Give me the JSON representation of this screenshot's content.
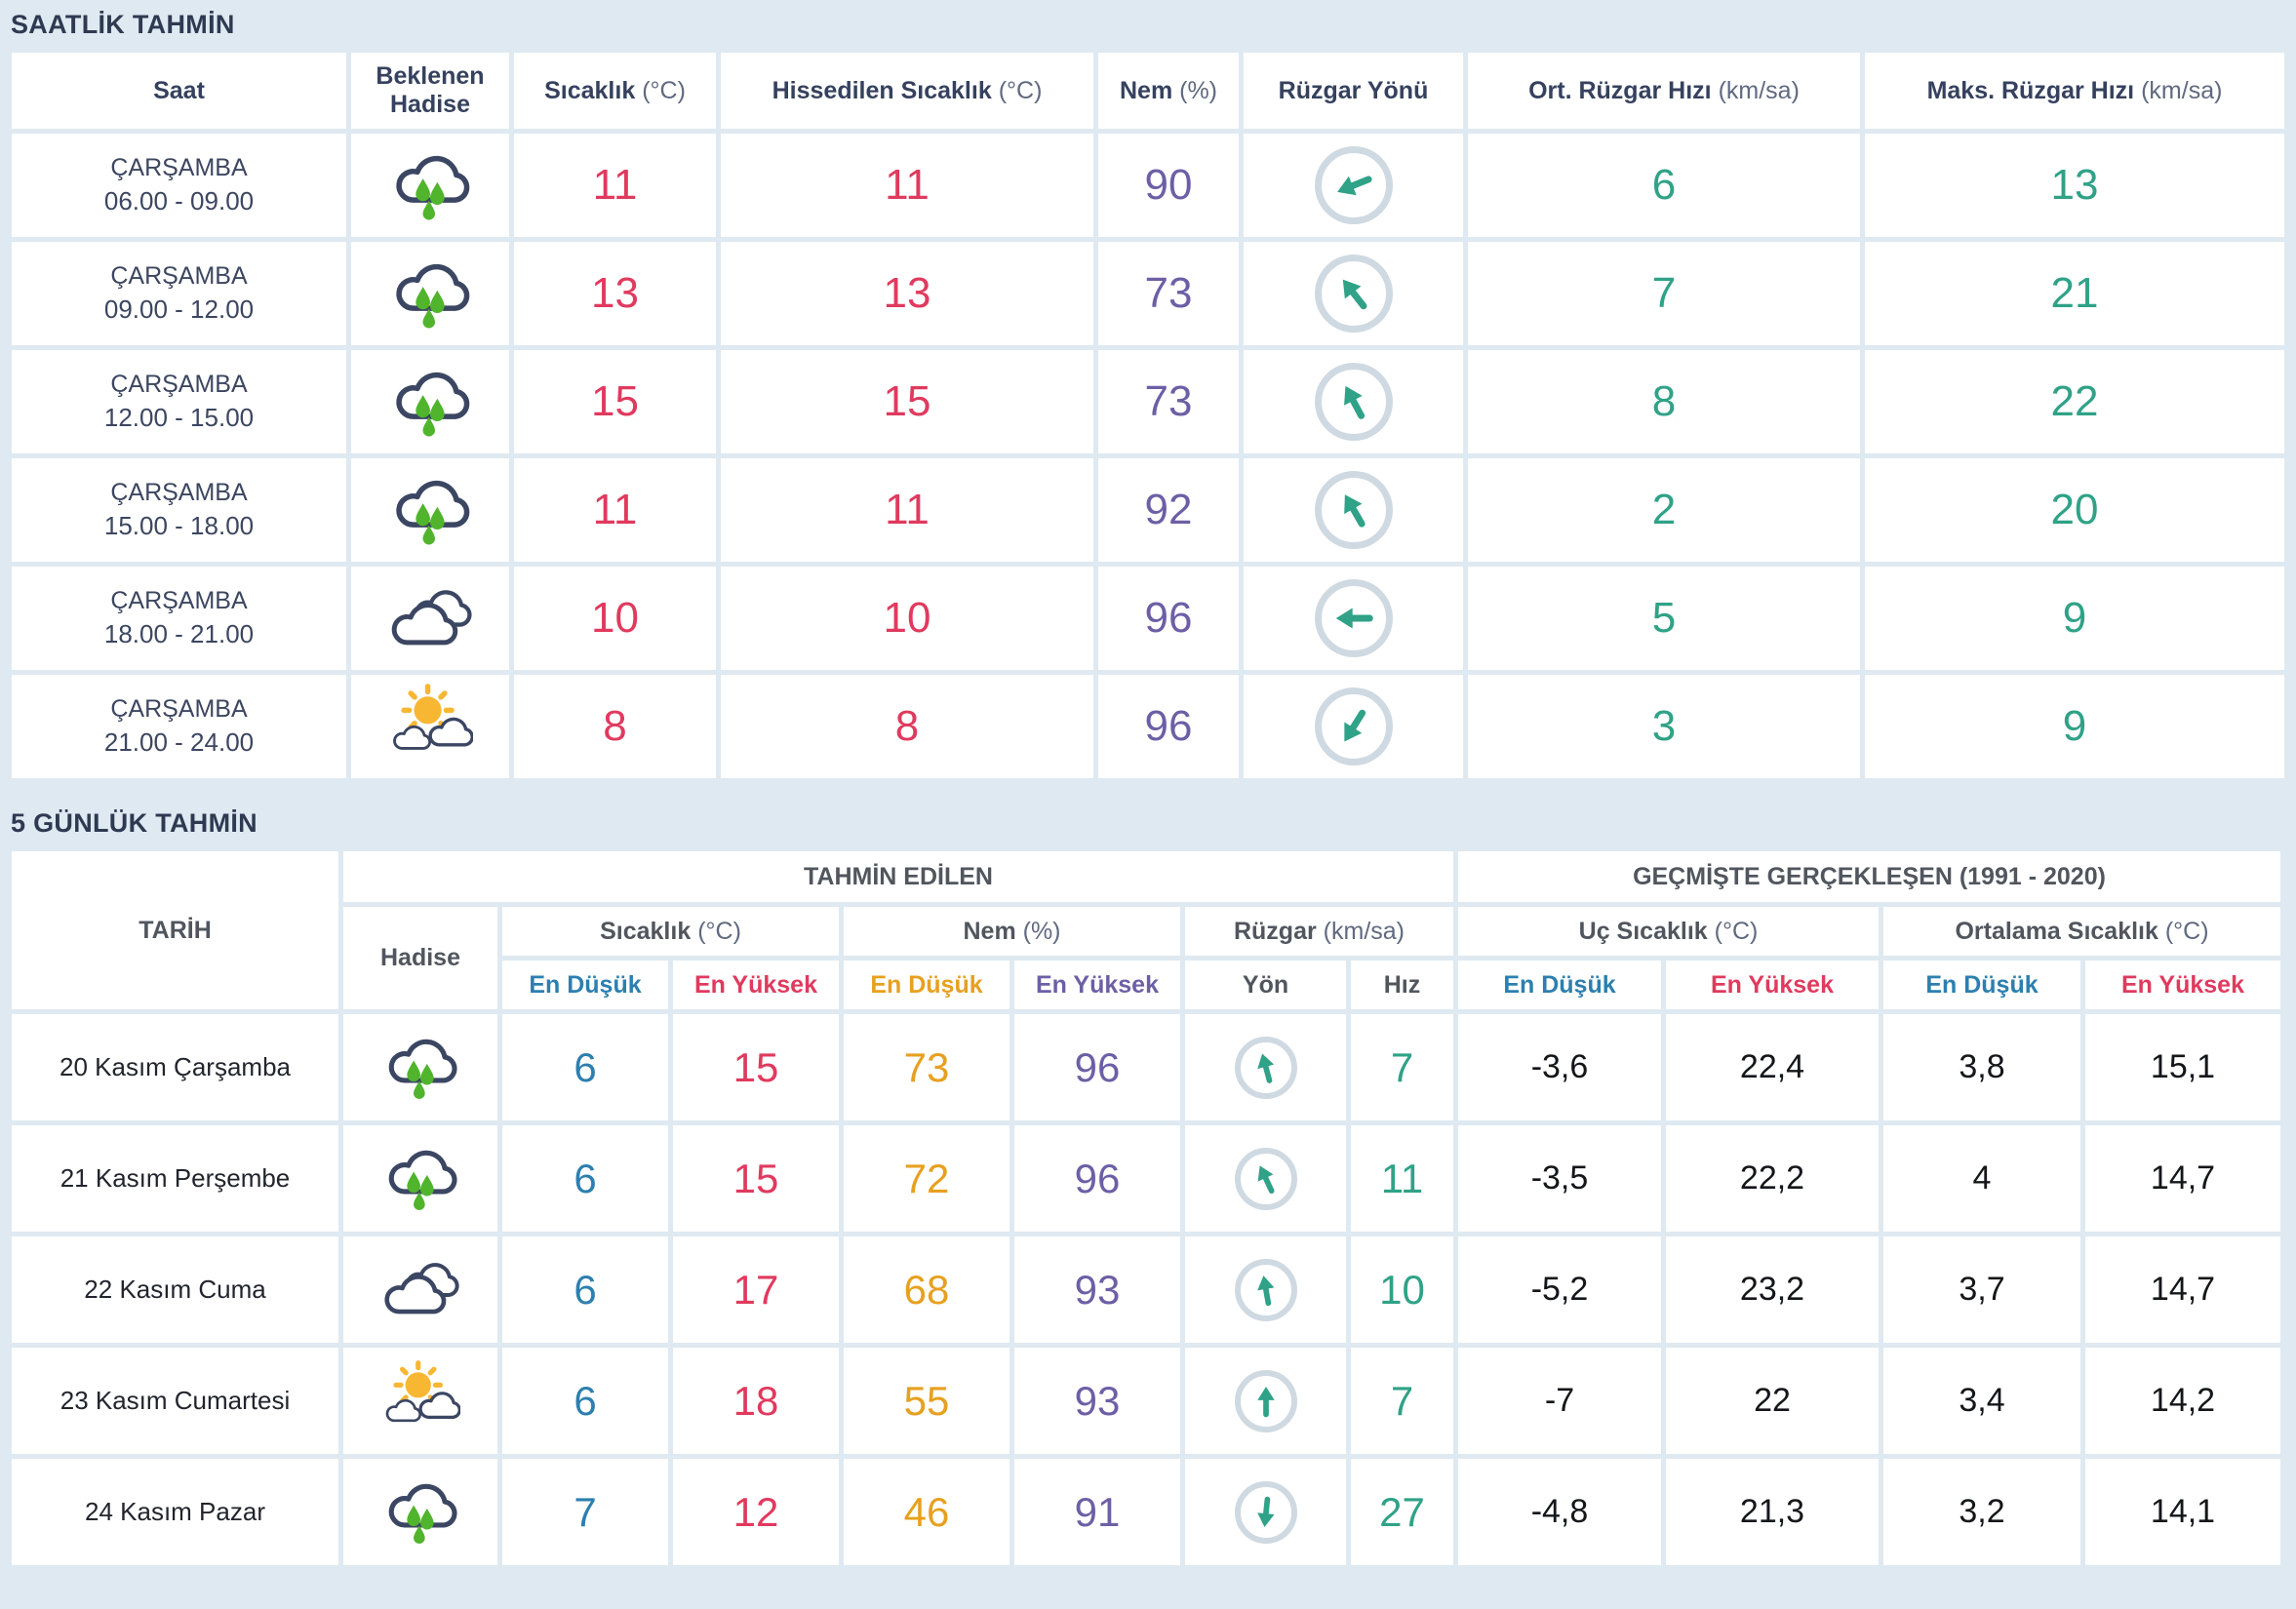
{
  "colors": {
    "page_bg": "#dfe9f1",
    "cell_bg": "#ffffff",
    "title": "#2e3a52",
    "header_text": "#35415e",
    "header_unit": "#60697f",
    "subheader_gray": "#51565e",
    "temp_red": "#e03a5e",
    "min_blue": "#2c7fae",
    "hum_purple": "#6d5fa5",
    "hum_min_orange": "#e7a01f",
    "wind_teal": "#2fa287",
    "hist_black": "#14161a",
    "circle_gray": "#cfd9e2",
    "cloud_navy": "#3b4662",
    "drop_green": "#50b42c",
    "sun_amber": "#f7b733"
  },
  "hourly": {
    "title": "SAATLİK TAHMİN",
    "headers": {
      "saat": "Saat",
      "hadise": "Beklenen Hadise",
      "sicaklik": "Sıcaklık",
      "sicaklik_unit": "(°C)",
      "hissedilen": "Hissedilen Sıcaklık",
      "hissedilen_unit": "(°C)",
      "nem": "Nem",
      "nem_unit": "(%)",
      "yon": "Rüzgar Yönü",
      "ort": "Ort. Rüzgar Hızı",
      "ort_unit": "(km/sa)",
      "maks": "Maks. Rüzgar Hızı",
      "maks_unit": "(km/sa)"
    },
    "rows": [
      {
        "day": "ÇARŞAMBA",
        "time": "06.00 - 09.00",
        "icon": "rain",
        "temp": "11",
        "feels": "11",
        "humidity": "90",
        "wind_deg": 248,
        "wind_avg": "6",
        "wind_max": "13"
      },
      {
        "day": "ÇARŞAMBA",
        "time": "09.00 - 12.00",
        "icon": "rain",
        "temp": "13",
        "feels": "13",
        "humidity": "73",
        "wind_deg": 322,
        "wind_avg": "7",
        "wind_max": "21"
      },
      {
        "day": "ÇARŞAMBA",
        "time": "12.00 - 15.00",
        "icon": "rain",
        "temp": "15",
        "feels": "15",
        "humidity": "73",
        "wind_deg": 332,
        "wind_avg": "8",
        "wind_max": "22"
      },
      {
        "day": "ÇARŞAMBA",
        "time": "15.00 - 18.00",
        "icon": "rain",
        "temp": "11",
        "feels": "11",
        "humidity": "92",
        "wind_deg": 330,
        "wind_avg": "2",
        "wind_max": "20"
      },
      {
        "day": "ÇARŞAMBA",
        "time": "18.00 - 21.00",
        "icon": "cloudy",
        "temp": "10",
        "feels": "10",
        "humidity": "96",
        "wind_deg": 270,
        "wind_avg": "5",
        "wind_max": "9"
      },
      {
        "day": "ÇARŞAMBA",
        "time": "21.00 - 24.00",
        "icon": "partly-sunny",
        "temp": "8",
        "feels": "8",
        "humidity": "96",
        "wind_deg": 212,
        "wind_avg": "3",
        "wind_max": "9"
      }
    ]
  },
  "daily": {
    "title": "5 GÜNLÜK TAHMİN",
    "headers": {
      "tarih": "TARİH",
      "tahmin": "TAHMİN EDİLEN",
      "gecmis": "GEÇMİŞTE GERÇEKLEŞEN (1991 - 2020)",
      "hadise": "Hadise",
      "sicaklik": "Sıcaklık",
      "sicaklik_unit": "(°C)",
      "nem": "Nem",
      "nem_unit": "(%)",
      "ruzgar": "Rüzgar",
      "ruzgar_unit": "(km/sa)",
      "uc": "Uç Sıcaklık",
      "uc_unit": "(°C)",
      "ortalama": "Ortalama Sıcaklık",
      "ortalama_unit": "(°C)",
      "en_dusuk": "En Düşük",
      "en_yuksek": "En Yüksek",
      "yon": "Yön",
      "hiz": "Hız"
    },
    "rows": [
      {
        "date": "20 Kasım Çarşamba",
        "icon": "rain",
        "tmin": "6",
        "tmax": "15",
        "hmin": "73",
        "hmax": "96",
        "wind_deg": 345,
        "wind_speed": "7",
        "uc_min": "-3,6",
        "uc_max": "22,4",
        "ort_min": "3,8",
        "ort_max": "15,1"
      },
      {
        "date": "21 Kasım Perşembe",
        "icon": "rain",
        "tmin": "6",
        "tmax": "15",
        "hmin": "72",
        "hmax": "96",
        "wind_deg": 335,
        "wind_speed": "11",
        "uc_min": "-3,5",
        "uc_max": "22,2",
        "ort_min": "4",
        "ort_max": "14,7"
      },
      {
        "date": "22 Kasım Cuma",
        "icon": "cloudy",
        "tmin": "6",
        "tmax": "17",
        "hmin": "68",
        "hmax": "93",
        "wind_deg": 350,
        "wind_speed": "10",
        "uc_min": "-5,2",
        "uc_max": "23,2",
        "ort_min": "3,7",
        "ort_max": "14,7"
      },
      {
        "date": "23 Kasım Cumartesi",
        "icon": "partly-sunny",
        "tmin": "6",
        "tmax": "18",
        "hmin": "55",
        "hmax": "93",
        "wind_deg": 0,
        "wind_speed": "7",
        "uc_min": "-7",
        "uc_max": "22",
        "ort_min": "3,4",
        "ort_max": "14,2"
      },
      {
        "date": "24 Kasım Pazar",
        "icon": "rain",
        "tmin": "7",
        "tmax": "12",
        "hmin": "46",
        "hmax": "91",
        "wind_deg": 186,
        "wind_speed": "27",
        "uc_min": "-4,8",
        "uc_max": "21,3",
        "ort_min": "3,2",
        "ort_max": "14,1"
      }
    ]
  }
}
